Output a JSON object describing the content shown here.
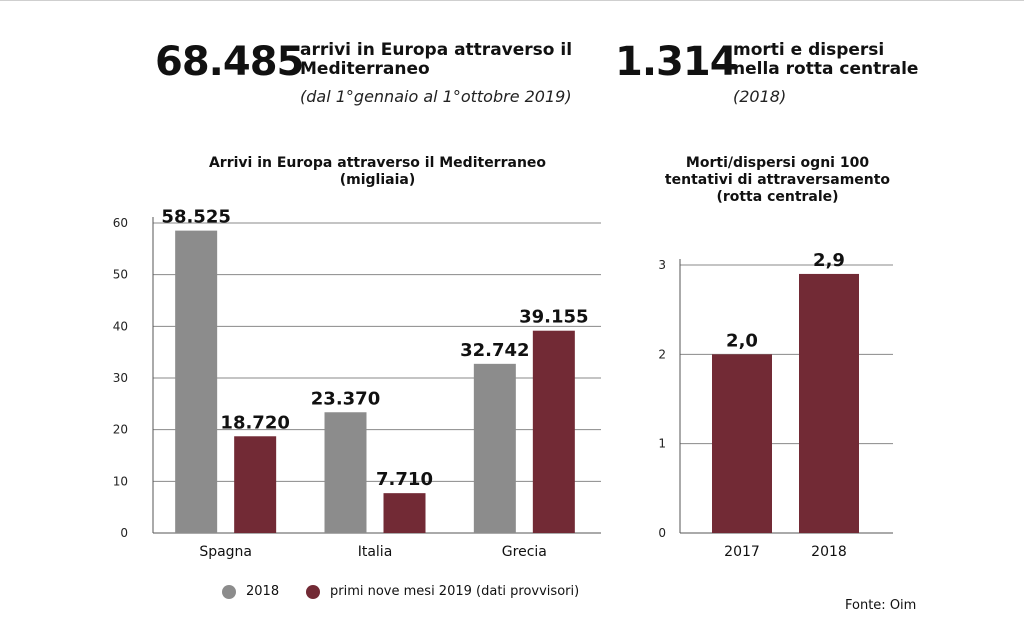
{
  "stats": [
    {
      "number": "68.485",
      "text": "arrivi in Europa attraverso il\nMediterraneo",
      "note": "(dal 1°gennaio al 1°ottobre 2019)"
    },
    {
      "number": "1.314",
      "text": "morti e dispersi\nnella rotta centrale",
      "note": "(2018)"
    }
  ],
  "colors": {
    "series_2018": "#8c8c8c",
    "series_2019": "#722a35",
    "grid": "#8a8a8a"
  },
  "chart_data": [
    {
      "type": "bar",
      "title": "Arrivi in Europa attraverso il Mediterraneo\n(migliaia)",
      "categories": [
        "Spagna",
        "Italia",
        "Grecia"
      ],
      "series": [
        {
          "name": "2018",
          "values": [
            58.525,
            23.37,
            32.742
          ],
          "labels": [
            "58.525",
            "23.370",
            "32.742"
          ]
        },
        {
          "name": "primi nove mesi 2019 (dati provvisori)",
          "values": [
            18.72,
            7.71,
            39.155
          ],
          "labels": [
            "18.720",
            "7.710",
            "39.155"
          ]
        }
      ],
      "yticks": [
        "0",
        "10",
        "20",
        "30",
        "40",
        "50",
        "60"
      ],
      "ylim": [
        0,
        60
      ],
      "grid": true,
      "legend": "bottom"
    },
    {
      "type": "bar",
      "title": "Morti/dispersi ogni 100\ntentativi di attraversamento\n(rotta centrale)",
      "categories": [
        "2017",
        "2018"
      ],
      "values": [
        2.0,
        2.9
      ],
      "labels": [
        "2,0",
        "2,9"
      ],
      "yticks": [
        "0",
        "1",
        "2",
        "3"
      ],
      "ylim": [
        0,
        3
      ],
      "grid": true
    }
  ],
  "source": "Fonte: Oim"
}
